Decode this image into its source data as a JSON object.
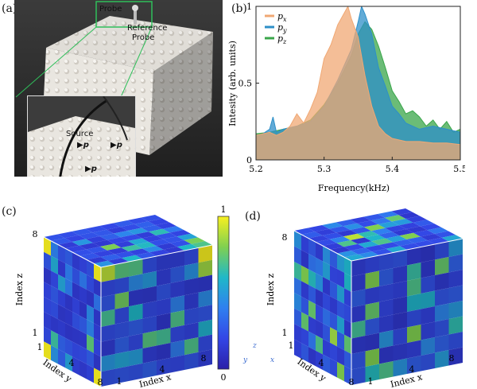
{
  "panels": {
    "a": "(a)",
    "b": "(b)",
    "c": "(c)",
    "d": "(d)"
  },
  "photo": {
    "probe_label": "Probe",
    "reference_label": "Reference",
    "reference_label_2": "Probe",
    "source_label": "Source",
    "symbols": [
      "p",
      "p",
      "p"
    ]
  },
  "chart_data": {
    "type": "area",
    "xlabel": "Frequency(kHz)",
    "ylabel": "Intesity (arb. units)",
    "xlim": [
      5.2,
      5.5
    ],
    "ylim": [
      0,
      1
    ],
    "xticks": [
      "5.2",
      "5.3",
      "5.4",
      "5.5"
    ],
    "yticks": [
      "0",
      "0.5",
      "1"
    ],
    "legend_position": "top-left",
    "series": [
      {
        "name": "p_x",
        "color": "#f0a874",
        "x": [
          5.19,
          5.2,
          5.21,
          5.22,
          5.23,
          5.24,
          5.25,
          5.26,
          5.27,
          5.28,
          5.29,
          5.3,
          5.31,
          5.32,
          5.33,
          5.335,
          5.34,
          5.35,
          5.36,
          5.37,
          5.38,
          5.39,
          5.4,
          5.42,
          5.44,
          5.46,
          5.48,
          5.5
        ],
        "y": [
          0.15,
          0.16,
          0.17,
          0.18,
          0.16,
          0.18,
          0.22,
          0.3,
          0.24,
          0.33,
          0.44,
          0.66,
          0.75,
          0.88,
          0.96,
          1.0,
          0.92,
          0.8,
          0.55,
          0.35,
          0.22,
          0.17,
          0.14,
          0.12,
          0.12,
          0.11,
          0.11,
          0.1
        ]
      },
      {
        "name": "p_y",
        "color": "#2d8fc8",
        "x": [
          5.19,
          5.2,
          5.21,
          5.22,
          5.225,
          5.23,
          5.24,
          5.26,
          5.28,
          5.3,
          5.32,
          5.33,
          5.34,
          5.35,
          5.355,
          5.36,
          5.37,
          5.38,
          5.39,
          5.4,
          5.41,
          5.42,
          5.44,
          5.46,
          5.48,
          5.5
        ],
        "y": [
          0.17,
          0.16,
          0.17,
          0.2,
          0.28,
          0.18,
          0.2,
          0.22,
          0.25,
          0.35,
          0.52,
          0.62,
          0.72,
          0.9,
          1.0,
          0.95,
          0.82,
          0.6,
          0.48,
          0.35,
          0.3,
          0.24,
          0.2,
          0.22,
          0.2,
          0.18
        ]
      },
      {
        "name": "p_z",
        "color": "#3aa64a",
        "x": [
          5.19,
          5.2,
          5.22,
          5.24,
          5.26,
          5.28,
          5.3,
          5.32,
          5.34,
          5.35,
          5.36,
          5.37,
          5.38,
          5.39,
          5.4,
          5.41,
          5.42,
          5.43,
          5.44,
          5.45,
          5.46,
          5.47,
          5.48,
          5.49,
          5.5
        ],
        "y": [
          0.18,
          0.17,
          0.18,
          0.2,
          0.22,
          0.26,
          0.36,
          0.5,
          0.68,
          0.82,
          0.9,
          0.85,
          0.74,
          0.6,
          0.45,
          0.38,
          0.3,
          0.32,
          0.28,
          0.22,
          0.26,
          0.2,
          0.25,
          0.18,
          0.2
        ]
      }
    ]
  },
  "cube_c": {
    "axis_z": "Index z",
    "axis_y": "Index y",
    "axis_x": "Index x",
    "z_ticks": [
      "8",
      "1"
    ],
    "y_ticks": [
      "1",
      "4",
      "8"
    ],
    "x_ticks": [
      "1",
      "4",
      "8"
    ],
    "colorbar_ticks": [
      "1",
      "0"
    ],
    "axes_glyph": [
      "z",
      "y",
      "x"
    ]
  },
  "cube_d": {
    "axis_z": "Index z",
    "axis_y": "Index y",
    "axis_x": "Index x",
    "z_ticks": [
      "8",
      "1"
    ],
    "y_ticks": [
      "1",
      "4",
      "8"
    ],
    "x_ticks": [
      "1",
      "4",
      "8"
    ]
  }
}
